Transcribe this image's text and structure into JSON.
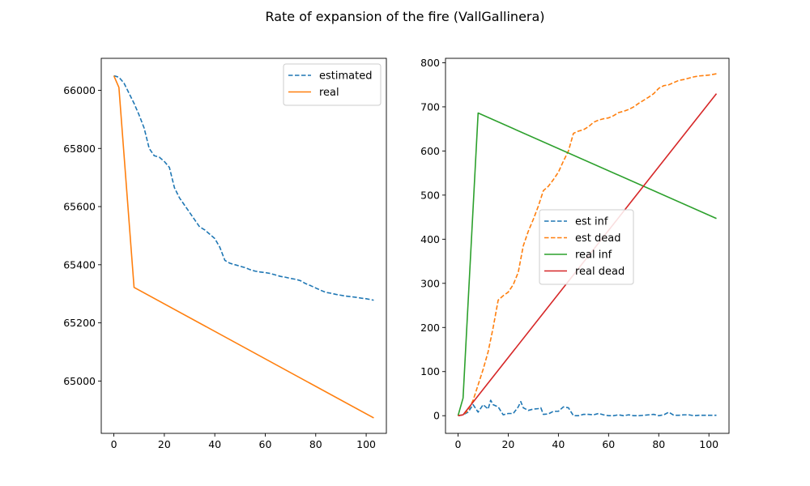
{
  "figure": {
    "title": "Rate of expansion of the fire (VallGallinera)"
  },
  "chart_data": [
    {
      "type": "line",
      "title": "",
      "xlabel": "",
      "ylabel": "",
      "xlim": [
        -5,
        108
      ],
      "ylim": [
        64820,
        66110
      ],
      "xticks": [
        0,
        20,
        40,
        60,
        80,
        100
      ],
      "yticks": [
        65000,
        65200,
        65400,
        65600,
        65800,
        66000
      ],
      "grid": false,
      "legend_position": "upper right",
      "series": [
        {
          "name": "estimated",
          "color": "#1f77b4",
          "dashed": true,
          "x": [
            0,
            2,
            4,
            6,
            8,
            10,
            12,
            14,
            16,
            18,
            20,
            22,
            24,
            26,
            28,
            30,
            32,
            34,
            36,
            38,
            40,
            42,
            44,
            46,
            48,
            50,
            52,
            54,
            56,
            58,
            60,
            62,
            64,
            66,
            68,
            70,
            72,
            74,
            76,
            78,
            80,
            82,
            84,
            86,
            88,
            90,
            92,
            94,
            96,
            98,
            100,
            103
          ],
          "y": [
            66050,
            66045,
            66025,
            65990,
            65955,
            65915,
            65870,
            65800,
            65775,
            65770,
            65755,
            65735,
            65665,
            65630,
            65605,
            65580,
            65555,
            65530,
            65520,
            65505,
            65490,
            65460,
            65415,
            65405,
            65400,
            65395,
            65390,
            65383,
            65378,
            65375,
            65373,
            65370,
            65365,
            65360,
            65357,
            65353,
            65350,
            65345,
            65335,
            65328,
            65320,
            65312,
            65305,
            65302,
            65298,
            65295,
            65292,
            65290,
            65288,
            65285,
            65283,
            65278
          ]
        },
        {
          "name": "real",
          "color": "#ff7f0e",
          "dashed": false,
          "x": [
            0,
            2,
            8,
            103
          ],
          "y": [
            66050,
            66010,
            65322,
            64873
          ]
        }
      ]
    },
    {
      "type": "line",
      "title": "",
      "xlabel": "",
      "ylabel": "",
      "xlim": [
        -5,
        108
      ],
      "ylim": [
        -40,
        810
      ],
      "xticks": [
        0,
        20,
        40,
        60,
        80,
        100
      ],
      "yticks": [
        0,
        100,
        200,
        300,
        400,
        500,
        600,
        700,
        800
      ],
      "grid": false,
      "legend_position": "center",
      "series": [
        {
          "name": "est inf",
          "color": "#1f77b4",
          "dashed": true,
          "x": [
            0,
            2,
            4,
            6,
            8,
            10,
            12,
            13,
            14,
            16,
            18,
            20,
            22,
            24,
            25,
            26,
            28,
            30,
            32,
            33,
            34,
            36,
            38,
            40,
            42,
            44,
            46,
            48,
            50,
            52,
            54,
            56,
            58,
            60,
            62,
            64,
            66,
            68,
            70,
            72,
            74,
            76,
            78,
            80,
            82,
            84,
            86,
            88,
            90,
            92,
            94,
            96,
            98,
            100,
            103
          ],
          "y": [
            0,
            2,
            8,
            25,
            8,
            25,
            15,
            35,
            25,
            20,
            2,
            5,
            5,
            20,
            32,
            18,
            12,
            15,
            16,
            18,
            3,
            4,
            10,
            10,
            20,
            18,
            0,
            0,
            3,
            3,
            2,
            5,
            2,
            0,
            0,
            2,
            0,
            2,
            0,
            0,
            1,
            2,
            3,
            0,
            2,
            8,
            1,
            1,
            2,
            2,
            0,
            1,
            1,
            1,
            1
          ]
        },
        {
          "name": "est dead",
          "color": "#ff7f0e",
          "dashed": true,
          "x": [
            0,
            2,
            4,
            6,
            8,
            10,
            12,
            14,
            16,
            18,
            20,
            22,
            24,
            26,
            28,
            30,
            32,
            34,
            36,
            38,
            40,
            42,
            44,
            46,
            48,
            50,
            52,
            54,
            56,
            58,
            60,
            62,
            64,
            66,
            68,
            70,
            72,
            74,
            76,
            78,
            80,
            82,
            84,
            86,
            88,
            90,
            92,
            94,
            96,
            98,
            100,
            103
          ],
          "y": [
            0,
            2,
            12,
            35,
            70,
            105,
            145,
            200,
            262,
            272,
            280,
            297,
            325,
            385,
            418,
            445,
            475,
            510,
            520,
            535,
            552,
            577,
            600,
            640,
            645,
            648,
            655,
            665,
            670,
            673,
            675,
            680,
            687,
            690,
            694,
            700,
            708,
            715,
            722,
            730,
            742,
            748,
            750,
            755,
            760,
            762,
            765,
            768,
            770,
            771,
            772,
            775
          ]
        },
        {
          "name": "real inf",
          "color": "#2ca02c",
          "dashed": false,
          "x": [
            0,
            2,
            8,
            103
          ],
          "y": [
            0,
            40,
            686,
            447
          ]
        },
        {
          "name": "real dead",
          "color": "#d62728",
          "dashed": false,
          "x": [
            0,
            2,
            103
          ],
          "y": [
            0,
            2,
            730
          ]
        }
      ]
    }
  ]
}
